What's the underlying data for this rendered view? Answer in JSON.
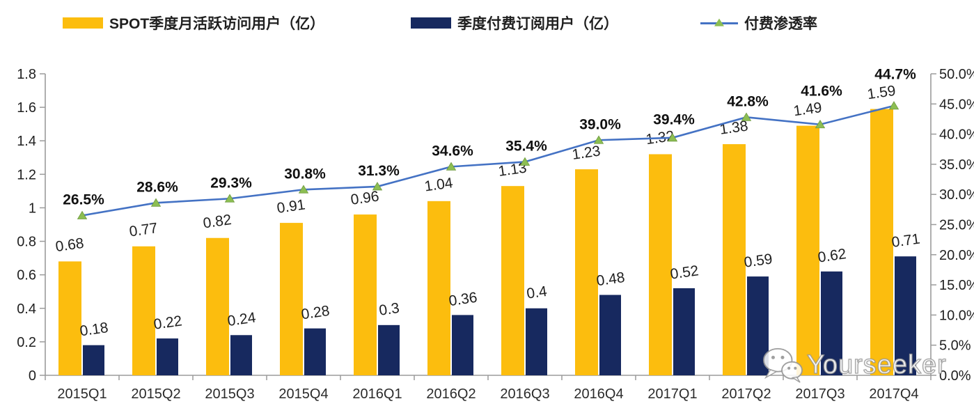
{
  "legend": {
    "mau": {
      "label": "SPOT季度月活跃访问用户（亿）",
      "color": "#FCBD0E"
    },
    "subs": {
      "label": "季度付费订阅用户（亿）",
      "color": "#17295F"
    },
    "penetration": {
      "label": "付费渗透率",
      "line_color": "#4472C4",
      "marker_color": "#8CBE53"
    }
  },
  "watermark": {
    "text": "Yourseeker"
  },
  "chart_data": {
    "type": "bar",
    "subtype": "grouped-bar-with-line",
    "categories": [
      "2015Q1",
      "2015Q2",
      "2015Q3",
      "2015Q4",
      "2016Q1",
      "2016Q2",
      "2016Q3",
      "2016Q4",
      "2017Q1",
      "2017Q2",
      "2017Q3",
      "2017Q4"
    ],
    "series": [
      {
        "name": "SPOT季度月活跃访问用户（亿）",
        "type": "bar",
        "color": "#FCBD0E",
        "values": [
          0.68,
          0.77,
          0.82,
          0.91,
          0.96,
          1.04,
          1.13,
          1.23,
          1.32,
          1.38,
          1.49,
          1.59
        ],
        "labels": [
          "0.68",
          "0.77",
          "0.82",
          "0.91",
          "0.96",
          "1.04",
          "1.13",
          "1.23",
          "1.32",
          "1.38",
          "1.49",
          "1.59"
        ]
      },
      {
        "name": "季度付费订阅用户（亿）",
        "type": "bar",
        "color": "#17295F",
        "values": [
          0.18,
          0.22,
          0.24,
          0.28,
          0.3,
          0.36,
          0.4,
          0.48,
          0.52,
          0.59,
          0.62,
          0.71
        ],
        "labels": [
          "0.18",
          "0.22",
          "0.24",
          "0.28",
          "0.3",
          "0.36",
          "0.4",
          "0.48",
          "0.52",
          "0.59",
          "0.62",
          "0.71"
        ]
      },
      {
        "name": "付费渗透率",
        "type": "line",
        "color": "#4472C4",
        "marker": "triangle",
        "marker_color": "#8CBE53",
        "values_pct": [
          26.5,
          28.6,
          29.3,
          30.8,
          31.3,
          34.6,
          35.4,
          39.0,
          39.4,
          42.8,
          41.6,
          44.7
        ],
        "labels": [
          "26.5%",
          "28.6%",
          "29.3%",
          "30.8%",
          "31.3%",
          "34.6%",
          "35.4%",
          "39.0%",
          "39.4%",
          "42.8%",
          "41.6%",
          "44.7%"
        ]
      }
    ],
    "left_axis": {
      "min": 0,
      "max": 1.8,
      "step": 0.2,
      "ticks": [
        "0",
        "0.2",
        "0.4",
        "0.6",
        "0.8",
        "1",
        "1.2",
        "1.4",
        "1.6",
        "1.8"
      ]
    },
    "right_axis": {
      "min": 0,
      "max": 50,
      "step": 5,
      "ticks": [
        "0.0%",
        "5.0%",
        "10.0%",
        "15.0%",
        "20.0%",
        "25.0%",
        "30.0%",
        "35.0%",
        "40.0%",
        "45.0%",
        "50.0%"
      ]
    },
    "grid": false,
    "legend_position": "top",
    "axis_color": "#9b9b9b",
    "label_color": "#1f1f1f"
  }
}
